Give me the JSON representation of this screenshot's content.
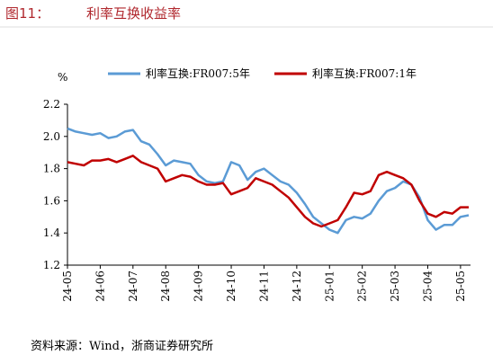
{
  "chart_data": {
    "type": "line",
    "figure_label": "图11：",
    "title": "利率互换收益率",
    "y_unit": "%",
    "source": "资料来源：Wind，浙商证券研究所",
    "categories": [
      "24-05",
      null,
      null,
      null,
      "24-06",
      null,
      null,
      null,
      "24-07",
      null,
      null,
      null,
      "24-08",
      null,
      null,
      null,
      "24-09",
      null,
      null,
      null,
      "24-10",
      null,
      null,
      null,
      "24-11",
      null,
      null,
      null,
      "24-12",
      null,
      null,
      null,
      "25-01",
      null,
      null,
      null,
      "25-02",
      null,
      null,
      null,
      "25-03",
      null,
      null,
      null,
      "25-04",
      null,
      null,
      null,
      "25-05",
      null
    ],
    "series": [
      {
        "name": "利率互换:FR007:5年",
        "color": "#5b9bd5",
        "values": [
          2.05,
          2.03,
          2.02,
          2.01,
          2.02,
          1.99,
          2.0,
          2.03,
          2.04,
          1.97,
          1.95,
          1.89,
          1.82,
          1.85,
          1.84,
          1.83,
          1.76,
          1.72,
          1.71,
          1.72,
          1.84,
          1.82,
          1.73,
          1.78,
          1.8,
          1.76,
          1.72,
          1.7,
          1.65,
          1.58,
          1.5,
          1.46,
          1.42,
          1.4,
          1.48,
          1.5,
          1.49,
          1.52,
          1.6,
          1.66,
          1.68,
          1.72,
          1.7,
          1.62,
          1.48,
          1.42,
          1.45,
          1.45,
          1.5,
          1.51
        ]
      },
      {
        "name": "利率互换:FR007:1年",
        "color": "#c00000",
        "values": [
          1.84,
          1.83,
          1.82,
          1.85,
          1.85,
          1.86,
          1.84,
          1.86,
          1.88,
          1.84,
          1.82,
          1.8,
          1.72,
          1.74,
          1.76,
          1.75,
          1.72,
          1.7,
          1.7,
          1.71,
          1.64,
          1.66,
          1.68,
          1.74,
          1.72,
          1.7,
          1.66,
          1.62,
          1.56,
          1.5,
          1.46,
          1.44,
          1.46,
          1.48,
          1.56,
          1.65,
          1.64,
          1.66,
          1.76,
          1.78,
          1.76,
          1.74,
          1.7,
          1.6,
          1.52,
          1.5,
          1.53,
          1.52,
          1.56,
          1.56
        ]
      }
    ],
    "ylim": [
      1.2,
      2.2
    ],
    "yticks": [
      1.2,
      1.4,
      1.6,
      1.8,
      {
        "value": 2.0,
        "label": "2.0"
      },
      2.2
    ],
    "grid": false,
    "legend": "top"
  }
}
